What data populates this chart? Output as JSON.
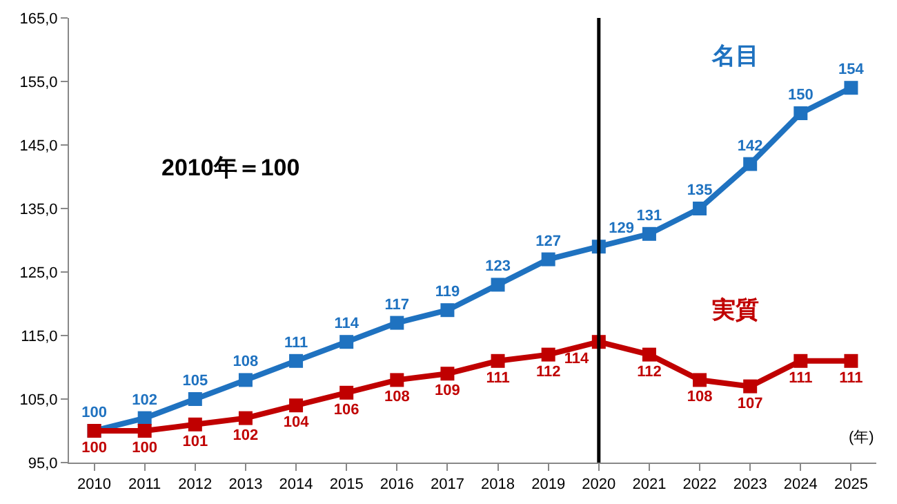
{
  "chart_data": {
    "type": "line",
    "categories": [
      "2010",
      "2011",
      "2012",
      "2013",
      "2014",
      "2015",
      "2016",
      "2017",
      "2018",
      "2019",
      "2020",
      "2021",
      "2022",
      "2023",
      "2024",
      "2025"
    ],
    "series": [
      {
        "name": "名目",
        "color": "#1f72c0",
        "values": [
          100,
          102,
          105,
          108,
          111,
          114,
          117,
          119,
          123,
          127,
          129,
          131,
          135,
          142,
          150,
          154
        ]
      },
      {
        "name": "実質",
        "color": "#c00000",
        "values": [
          100,
          100,
          101,
          102,
          104,
          106,
          108,
          109,
          111,
          112,
          114,
          112,
          108,
          107,
          111,
          111
        ]
      }
    ],
    "ylim": [
      95,
      165
    ],
    "yticks": [
      {
        "value": 95,
        "label": "95,0"
      },
      {
        "value": 105,
        "label": "105,0"
      },
      {
        "value": 115,
        "label": "115,0"
      },
      {
        "value": 125,
        "label": "125,0"
      },
      {
        "value": 135,
        "label": "135,0"
      },
      {
        "value": 145,
        "label": "145,0"
      },
      {
        "value": 155,
        "label": "155,0"
      },
      {
        "value": 165,
        "label": "165,0"
      }
    ],
    "ref_lines": [
      {
        "axis": "x",
        "value": "2020",
        "color": "#000000"
      }
    ],
    "annotations": [
      "2010年＝100",
      "(年)"
    ],
    "data_labels": true,
    "legend": false,
    "marker": "square",
    "line_style": "solid"
  }
}
